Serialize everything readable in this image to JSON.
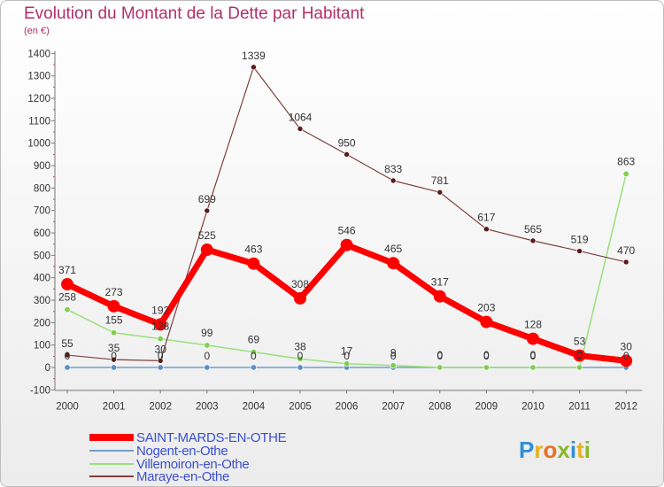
{
  "title": "Evolution du Montant de la Dette par Habitant",
  "unit_label": "(en €)",
  "logo_letters": [
    "P",
    "r",
    "o",
    "x",
    "i",
    "t",
    "i"
  ],
  "logo_colors": [
    "#2f8fd8",
    "#e8b21f",
    "#e8701f",
    "#86b829",
    "#2f8fd8",
    "#e8b21f",
    "#86b829"
  ],
  "chart_data": {
    "type": "line",
    "x": [
      "2000",
      "2001",
      "2002",
      "2003",
      "2004",
      "2005",
      "2006",
      "2007",
      "2008",
      "2009",
      "2010",
      "2011",
      "2012"
    ],
    "ylim": [
      -100,
      1400
    ],
    "yticks": [
      "-100",
      "0",
      "100",
      "200",
      "300",
      "400",
      "500",
      "600",
      "700",
      "800",
      "900",
      "1000",
      "1100",
      "1200",
      "1300",
      "1400"
    ],
    "grid": false,
    "legend_position": "bottom-left",
    "series": [
      {
        "name": "SAINT-MARDS-EN-OTHE",
        "color": "#ff0000",
        "values": [
          371,
          273,
          192,
          525,
          463,
          308,
          546,
          465,
          317,
          203,
          128,
          53,
          30
        ],
        "labels": [
          "371",
          "273",
          "192",
          "525",
          "463",
          "308",
          "546",
          "465",
          "317",
          "203",
          "128",
          "53",
          "30"
        ]
      },
      {
        "name": "Nogent-en-Othe",
        "color": "#6f9fcf",
        "values": [
          0,
          0,
          0,
          0,
          0,
          0,
          0,
          0,
          0,
          0,
          0,
          0,
          0
        ],
        "labels": [
          "0",
          "0",
          "0",
          "0",
          "0",
          "0",
          "0",
          "0",
          "0",
          "0",
          "0",
          "0",
          "0"
        ]
      },
      {
        "name": "Villemoiron-en-Othe",
        "color": "#99e07a",
        "values": [
          258,
          155,
          128,
          99,
          69,
          38,
          17,
          9,
          0,
          0,
          0,
          0,
          863
        ],
        "labels": [
          "258",
          "155",
          "128",
          "99",
          "69",
          "38",
          "17",
          "9",
          "0",
          "0",
          "0",
          "0",
          "863"
        ]
      },
      {
        "name": "Maraye-en-Othe",
        "color": "#7f3f3f",
        "values": [
          55,
          35,
          30,
          699,
          1339,
          1064,
          950,
          833,
          781,
          617,
          565,
          519,
          470
        ],
        "labels": [
          "55",
          "35",
          "30",
          "699",
          "1339",
          "1064",
          "950",
          "833",
          "781",
          "617",
          "565",
          "519",
          "470"
        ]
      }
    ]
  }
}
